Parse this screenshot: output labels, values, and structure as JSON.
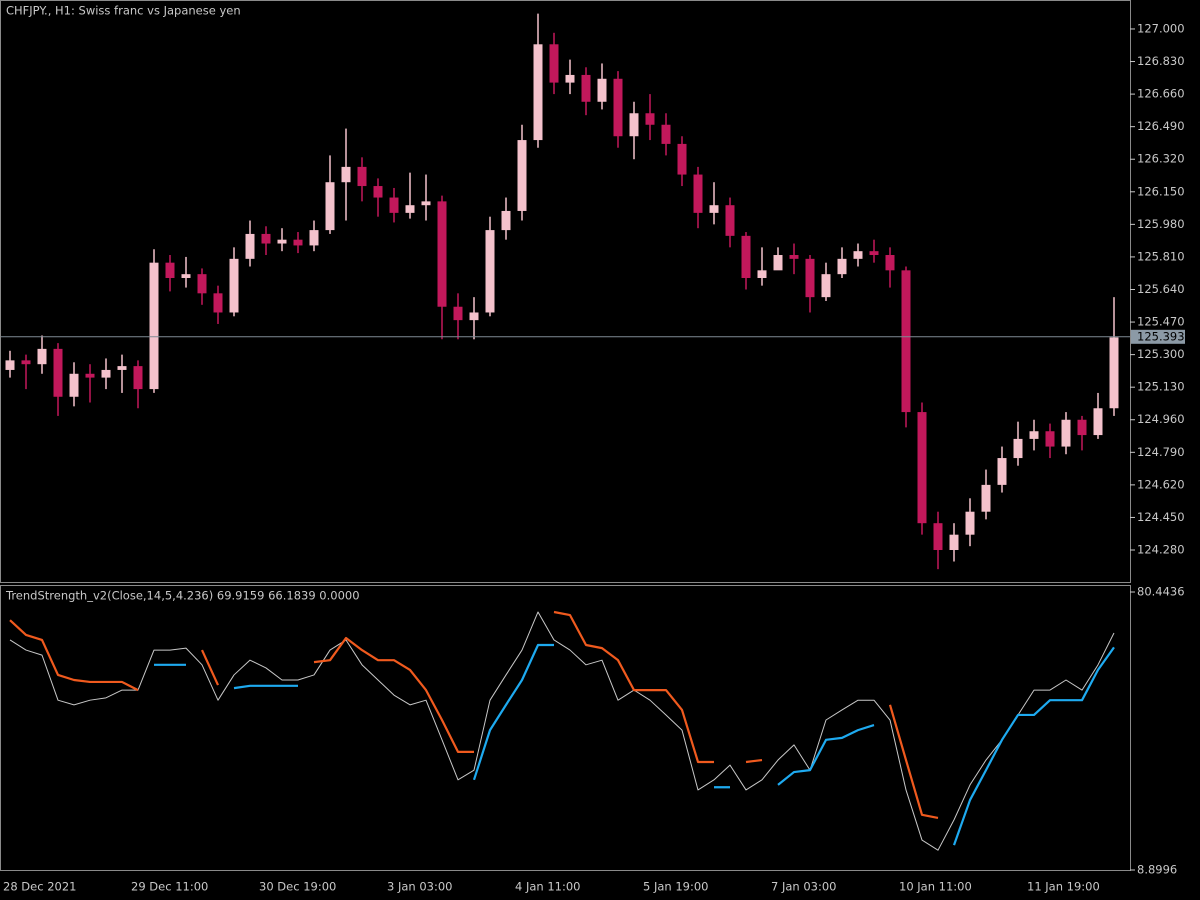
{
  "chart_data": [
    {
      "type": "candlestick",
      "title": "CHFJPY., H1:  Swiss franc vs Japanese yen",
      "categories": [
        "28 Dec 2021",
        null,
        null,
        null,
        null,
        null,
        null,
        null,
        "29 Dec 11:00",
        null,
        null,
        null,
        null,
        null,
        null,
        null,
        "30 Dec 19:00",
        null,
        null,
        null,
        null,
        null,
        null,
        null,
        "3 Jan 03:00",
        null,
        null,
        null,
        null,
        null,
        null,
        null,
        "4 Jan 11:00",
        null,
        null,
        null,
        null,
        null,
        null,
        null,
        "5 Jan 19:00",
        null,
        null,
        null,
        null,
        null,
        null,
        null,
        "7 Jan 03:00",
        null,
        null,
        null,
        null,
        null,
        null,
        null,
        "10 Jan 11:00",
        null,
        null,
        null,
        null,
        null,
        null,
        null,
        "11 Jan 19:00",
        null,
        null,
        null,
        null,
        null
      ],
      "open": [
        125.22,
        125.27,
        125.25,
        125.33,
        125.08,
        125.2,
        125.18,
        125.22,
        125.24,
        125.12,
        125.78,
        125.7,
        125.72,
        125.62,
        125.52,
        125.8,
        125.93,
        125.88,
        125.9,
        125.87,
        125.95,
        126.2,
        126.28,
        126.18,
        126.12,
        126.04,
        126.08,
        126.1,
        125.55,
        125.48,
        125.52,
        125.95,
        126.05,
        126.42,
        126.92,
        126.72,
        126.76,
        126.62,
        126.74,
        126.44,
        126.56,
        126.5,
        126.4,
        126.24,
        126.04,
        126.08,
        125.92,
        125.7,
        125.74,
        125.82,
        125.8,
        125.6,
        125.72,
        125.8,
        125.84,
        125.82,
        125.74,
        125.0,
        124.42,
        124.28,
        124.36,
        124.48,
        124.62,
        124.76,
        124.86,
        124.9,
        124.82,
        124.96,
        124.88,
        125.02
      ],
      "high": [
        125.32,
        125.3,
        125.4,
        125.36,
        125.26,
        125.25,
        125.28,
        125.3,
        125.27,
        125.85,
        125.82,
        125.81,
        125.75,
        125.66,
        125.86,
        126.0,
        125.97,
        125.96,
        125.94,
        126.0,
        126.34,
        126.48,
        126.33,
        126.22,
        126.17,
        126.25,
        126.24,
        126.13,
        125.62,
        125.6,
        126.02,
        126.12,
        126.5,
        127.08,
        126.98,
        126.84,
        126.8,
        126.82,
        126.78,
        126.62,
        126.66,
        126.56,
        126.44,
        126.28,
        126.2,
        126.12,
        125.94,
        125.86,
        125.86,
        125.88,
        125.82,
        125.78,
        125.86,
        125.88,
        125.9,
        125.86,
        125.76,
        125.05,
        124.48,
        124.42,
        124.55,
        124.7,
        124.82,
        124.95,
        124.96,
        124.94,
        125.0,
        124.98,
        125.1,
        125.6
      ],
      "low": [
        125.18,
        125.12,
        125.2,
        124.98,
        125.03,
        125.05,
        125.12,
        125.1,
        125.02,
        125.1,
        125.63,
        125.65,
        125.56,
        125.46,
        125.5,
        125.76,
        125.82,
        125.84,
        125.83,
        125.84,
        125.93,
        126.0,
        126.1,
        126.02,
        125.99,
        126.01,
        126.0,
        125.38,
        125.38,
        125.38,
        125.5,
        125.9,
        126.0,
        126.38,
        126.66,
        126.66,
        126.55,
        126.58,
        126.38,
        126.32,
        126.42,
        126.34,
        126.18,
        125.96,
        125.98,
        125.86,
        125.64,
        125.66,
        125.76,
        125.72,
        125.52,
        125.58,
        125.7,
        125.76,
        125.78,
        125.65,
        124.92,
        124.36,
        124.18,
        124.22,
        124.3,
        124.44,
        124.58,
        124.72,
        124.8,
        124.76,
        124.78,
        124.8,
        124.86,
        124.98
      ],
      "close": [
        125.27,
        125.25,
        125.33,
        125.08,
        125.2,
        125.18,
        125.22,
        125.24,
        125.12,
        125.78,
        125.7,
        125.72,
        125.62,
        125.52,
        125.8,
        125.93,
        125.88,
        125.9,
        125.87,
        125.95,
        126.2,
        126.28,
        126.18,
        126.12,
        126.04,
        126.08,
        126.1,
        125.55,
        125.48,
        125.52,
        125.95,
        126.05,
        126.42,
        126.92,
        126.72,
        126.76,
        126.62,
        126.74,
        126.44,
        126.56,
        126.5,
        126.4,
        126.24,
        126.04,
        126.08,
        125.92,
        125.7,
        125.74,
        125.82,
        125.8,
        125.6,
        125.72,
        125.8,
        125.84,
        125.82,
        125.74,
        125.0,
        124.42,
        124.28,
        124.36,
        124.48,
        124.62,
        124.76,
        124.86,
        124.9,
        124.82,
        124.96,
        124.88,
        125.02,
        125.39
      ],
      "up_color": "#f4c2cc",
      "down_color": "#c2185b",
      "last_price": 125.393,
      "ylim": [
        124.113,
        127.146
      ],
      "yticks": [
        {
          "value": 127,
          "label": "127.000"
        },
        {
          "value": 126.83,
          "label": "126.830"
        },
        {
          "value": 126.66,
          "label": "126.660"
        },
        {
          "value": 126.49,
          "label": "126.490"
        },
        {
          "value": 126.32,
          "label": "126.320"
        },
        {
          "value": 126.15,
          "label": "126.150"
        },
        {
          "value": 125.98,
          "label": "125.980"
        },
        {
          "value": 125.81,
          "label": "125.810"
        },
        {
          "value": 125.64,
          "label": "125.640"
        },
        {
          "value": 125.47,
          "label": "125.470"
        },
        {
          "value": 125.3,
          "label": "125.300"
        },
        {
          "value": 125.13,
          "label": "125.130"
        },
        {
          "value": 124.96,
          "label": "124.960"
        },
        {
          "value": 124.79,
          "label": "124.790"
        },
        {
          "value": 124.62,
          "label": "124.620"
        },
        {
          "value": 124.45,
          "label": "124.450"
        },
        {
          "value": 124.28,
          "label": "124.280"
        }
      ]
    },
    {
      "type": "line",
      "title": "TrendStrength_v2(Close,14,5,4.236) 69.9159 66.1839 0.0000",
      "series": [
        {
          "color": "#c8c8c8",
          "values": [
            68.1,
            65.5,
            64.2,
            52.6,
            51.4,
            52.6,
            53.2,
            55.2,
            55.2,
            65.5,
            65.5,
            66.0,
            61.7,
            52.6,
            59.1,
            62.9,
            60.9,
            57.8,
            57.8,
            59.1,
            65.5,
            68.1,
            61.7,
            57.8,
            53.9,
            51.4,
            52.6,
            42.4,
            32.1,
            34.6,
            52.6,
            59.1,
            65.5,
            75.3,
            68.1,
            65.5,
            61.7,
            62.9,
            52.6,
            55.2,
            52.6,
            48.8,
            44.9,
            29.5,
            32.1,
            35.9,
            29.5,
            32.1,
            37.2,
            41.1,
            34.6,
            47.5,
            50.1,
            52.6,
            52.6,
            47.5,
            29.5,
            16.6,
            14.0,
            21.8,
            30.8,
            37.2,
            42.4,
            48.8,
            55.2,
            55.2,
            57.8,
            55.2,
            61.7,
            69.9
          ]
        },
        {
          "color": "#f05a1e",
          "values": [
            73.2,
            69.4,
            68.1,
            59.1,
            57.8,
            57.3,
            57.3,
            57.3,
            55.2,
            null,
            null,
            null,
            65.5,
            56.5,
            null,
            null,
            null,
            null,
            null,
            62.4,
            62.9,
            68.6,
            65.5,
            62.9,
            62.9,
            60.4,
            55.2,
            47.5,
            39.3,
            39.3,
            null,
            null,
            null,
            null,
            75.3,
            74.5,
            66.8,
            66.0,
            62.9,
            55.2,
            55.2,
            55.2,
            50.1,
            36.7,
            36.7,
            null,
            36.7,
            37.2,
            null,
            null,
            null,
            null,
            null,
            null,
            null,
            51.4,
            37.2,
            23.1,
            22.3,
            null,
            null,
            null,
            null,
            null,
            null,
            null,
            null,
            null,
            null,
            null
          ]
        },
        {
          "color": "#1eaaf0",
          "values": [
            null,
            null,
            null,
            null,
            null,
            null,
            null,
            null,
            null,
            61.7,
            61.7,
            61.7,
            null,
            null,
            55.7,
            56.3,
            56.3,
            56.3,
            56.3,
            null,
            null,
            null,
            null,
            null,
            null,
            null,
            null,
            null,
            null,
            32.1,
            44.9,
            51.4,
            57.8,
            66.8,
            66.8,
            null,
            null,
            null,
            null,
            null,
            null,
            null,
            null,
            null,
            30.2,
            30.2,
            null,
            null,
            30.8,
            34.1,
            34.6,
            42.4,
            42.9,
            44.9,
            46.2,
            null,
            null,
            null,
            null,
            15.3,
            26.9,
            34.6,
            42.4,
            48.8,
            48.8,
            52.6,
            52.6,
            52.6,
            60.4,
            66.2
          ]
        }
      ],
      "ylim": [
        8.8996,
        80.4436
      ],
      "yticks": [
        80.4436,
        8.8996
      ]
    }
  ]
}
